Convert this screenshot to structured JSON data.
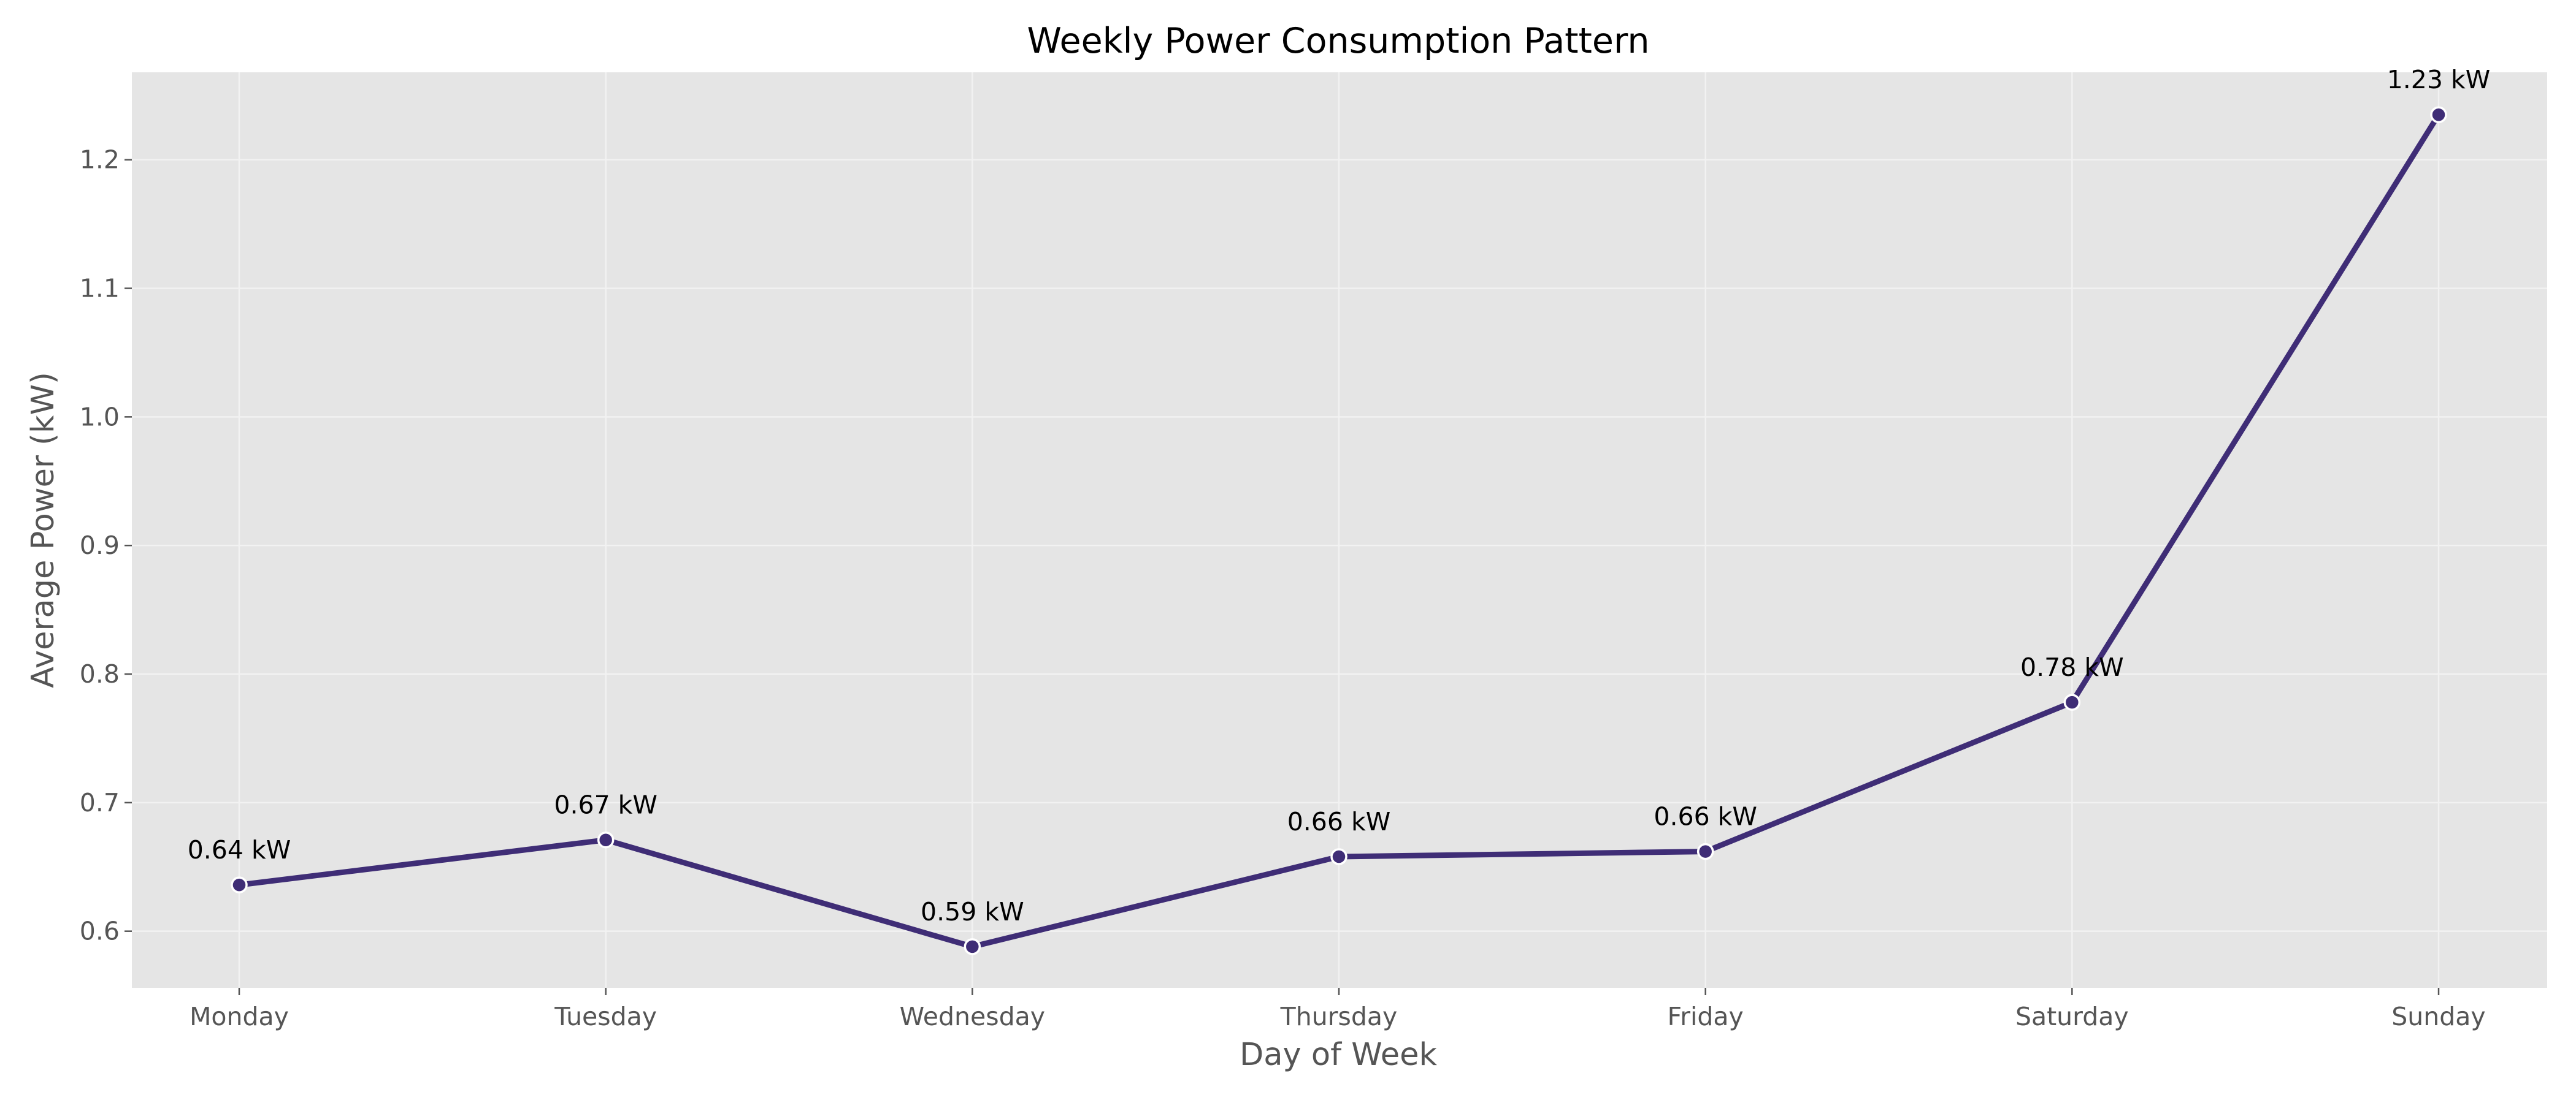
{
  "chart_data": {
    "type": "line",
    "title": "Weekly Power Consumption Pattern",
    "xlabel": "Day of Week",
    "ylabel": "Average Power (kW)",
    "categories": [
      "Monday",
      "Tuesday",
      "Wednesday",
      "Thursday",
      "Friday",
      "Saturday",
      "Sunday"
    ],
    "series": [
      {
        "values": [
          0.636,
          0.671,
          0.588,
          0.658,
          0.662,
          0.778,
          1.235
        ],
        "data_labels": [
          "0.64 kW",
          "0.67 kW",
          "0.59 kW",
          "0.66 kW",
          "0.66 kW",
          "0.78 kW",
          "1.23 kW"
        ]
      }
    ],
    "ylim": [
      0.556,
      1.268
    ],
    "yticks": [
      0.6,
      0.7,
      0.8,
      0.9,
      1.0,
      1.1,
      1.2
    ],
    "ytick_labels": [
      "0.6",
      "0.7",
      "0.8",
      "0.9",
      "1.0",
      "1.1",
      "1.2"
    ],
    "grid": true,
    "legend": false,
    "colors": {
      "line": "#3f2d76",
      "plot_background": "#e5e5e5",
      "grid": "#f2f2f2",
      "marker_edge": "#ffffff"
    }
  }
}
